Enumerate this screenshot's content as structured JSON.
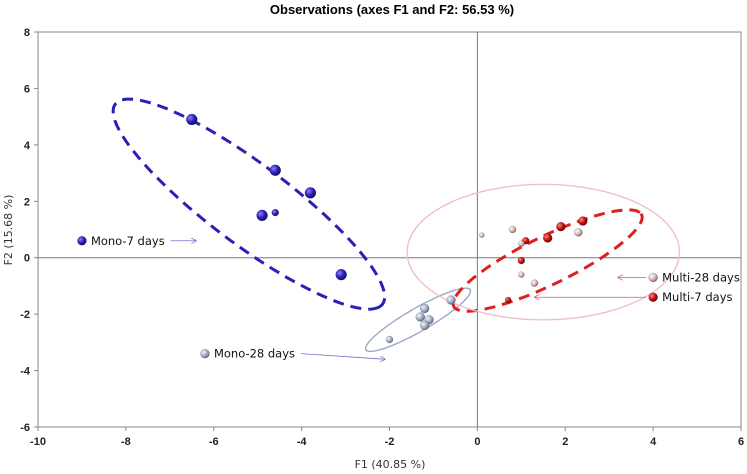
{
  "chart_data": {
    "type": "scatter",
    "title": "Observations (axes F1 and F2: 56.53 %)",
    "xlabel": "F1 (40.85 %)",
    "ylabel": "F2 (15.68 %)",
    "xlim": [
      -10,
      6
    ],
    "ylim": [
      -6,
      8
    ],
    "x_ticks": [
      "-10",
      "-8",
      "-6",
      "-4",
      "-2",
      "0",
      "2",
      "4",
      "6"
    ],
    "y_ticks": [
      "-6",
      "-4",
      "-2",
      "0",
      "2",
      "4",
      "6",
      "8"
    ],
    "series": [
      {
        "name": "Mono-7 days",
        "color": "#2a20b8",
        "points": [
          {
            "x": -6.5,
            "y": 4.9,
            "r": 5.5
          },
          {
            "x": -4.6,
            "y": 3.1,
            "r": 5.5
          },
          {
            "x": -3.8,
            "y": 2.3,
            "r": 5.5
          },
          {
            "x": -4.9,
            "y": 1.5,
            "r": 5.5
          },
          {
            "x": -4.6,
            "y": 1.6,
            "r": 3.5
          },
          {
            "x": -3.1,
            "y": -0.6,
            "r": 5.5
          }
        ]
      },
      {
        "name": "Mono-28 days",
        "color": "#a4b0c8",
        "points": [
          {
            "x": -1.2,
            "y": -1.8,
            "r": 4.5
          },
          {
            "x": -1.3,
            "y": -2.1,
            "r": 4.5
          },
          {
            "x": -1.1,
            "y": -2.2,
            "r": 4.5
          },
          {
            "x": -1.2,
            "y": -2.4,
            "r": 4.5
          },
          {
            "x": -0.6,
            "y": -1.5,
            "r": 4.5
          },
          {
            "x": -2.0,
            "y": -2.9,
            "r": 3.5
          }
        ]
      },
      {
        "name": "Multi-7 days",
        "color": "#c81010",
        "points": [
          {
            "x": 2.4,
            "y": 1.3,
            "r": 4.5
          },
          {
            "x": 1.9,
            "y": 1.1,
            "r": 4.5
          },
          {
            "x": 1.6,
            "y": 0.7,
            "r": 4.5
          },
          {
            "x": 1.1,
            "y": 0.6,
            "r": 3.5
          },
          {
            "x": 1.0,
            "y": -0.1,
            "r": 3.5
          },
          {
            "x": 0.7,
            "y": -1.5,
            "r": 3.0
          }
        ]
      },
      {
        "name": "Multi-28 days",
        "color": "#d8b8b8",
        "points": [
          {
            "x": 0.1,
            "y": 0.8,
            "r": 2.5
          },
          {
            "x": 0.8,
            "y": 1.0,
            "r": 3.5
          },
          {
            "x": 1.0,
            "y": 0.5,
            "r": 3.0
          },
          {
            "x": 2.3,
            "y": 0.9,
            "r": 4.0
          },
          {
            "x": 1.0,
            "y": -0.6,
            "r": 3.0
          },
          {
            "x": 1.3,
            "y": -0.9,
            "r": 3.5
          }
        ]
      }
    ],
    "ellipses": [
      {
        "name": "Mono-7 days",
        "cx": -5.2,
        "cy": 1.9,
        "a": 4.7,
        "b": 1.15,
        "angle_deg": -51,
        "color": "#2a20b8",
        "style": "dashed"
      },
      {
        "name": "Mono-28 days",
        "cx": -1.35,
        "cy": -2.2,
        "a": 1.6,
        "b": 0.35,
        "angle_deg": 43,
        "color": "#9aa8c8",
        "style": "solid"
      },
      {
        "name": "Multi-7 days",
        "cx": 1.6,
        "cy": -0.1,
        "a": 2.7,
        "b": 0.75,
        "angle_deg": 39,
        "color": "#e02020",
        "style": "dashed"
      },
      {
        "name": "Multi-28 days",
        "cx": 1.5,
        "cy": 0.2,
        "a": 3.1,
        "b": 2.4,
        "angle_deg": 0,
        "color": "#f2c0c4",
        "style": "solid"
      }
    ],
    "legend": [
      {
        "name": "Mono-7 days",
        "label_position": "left",
        "x": -9.0,
        "y": 0.6,
        "arrow_to_x": -6.4,
        "arrow_to_y": 0.6
      },
      {
        "name": "Mono-28 days",
        "label_position": "bottom-left",
        "x": -6.2,
        "y": -3.4,
        "arrow_to_x": -2.1,
        "arrow_to_y": -3.6
      },
      {
        "name": "Multi-28 days",
        "label_position": "right",
        "x": 4.0,
        "y": -0.7,
        "arrow_to_x": 3.2,
        "arrow_to_y": -0.7
      },
      {
        "name": "Multi-7 days",
        "label_position": "right",
        "x": 4.0,
        "y": -1.4,
        "arrow_to_x": 1.3,
        "arrow_to_y": -1.4
      }
    ]
  }
}
